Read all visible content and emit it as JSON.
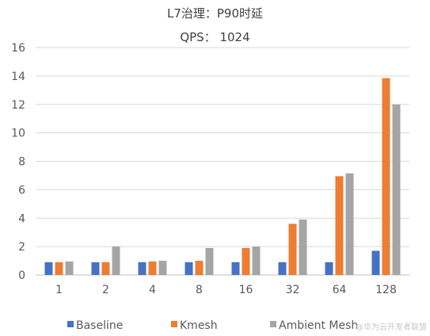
{
  "chart_data": {
    "type": "bar",
    "title": "L7治理：P90时延",
    "subtitle": "QPS： 1024",
    "xlabel": "",
    "ylabel": "",
    "categories": [
      "1",
      "2",
      "4",
      "8",
      "16",
      "32",
      "64",
      "128"
    ],
    "ylim": [
      0,
      16
    ],
    "yticks": [
      0,
      2,
      4,
      6,
      8,
      10,
      12,
      14,
      16
    ],
    "grid": true,
    "legend_position": "bottom",
    "series": [
      {
        "name": "Baseline",
        "color": "#4472C4",
        "values": [
          0.9,
          0.9,
          0.9,
          0.9,
          0.9,
          0.9,
          0.9,
          1.7
        ]
      },
      {
        "name": "Kmesh",
        "color": "#ED7D31",
        "values": [
          0.9,
          0.9,
          0.95,
          1.0,
          1.9,
          3.6,
          6.95,
          13.85
        ]
      },
      {
        "name": "Ambient Mesh",
        "color": "#A5A5A5",
        "values": [
          0.95,
          2.0,
          1.0,
          1.9,
          2.0,
          3.9,
          7.15,
          12.0
        ]
      }
    ]
  },
  "watermark": "@华为云开发者联盟"
}
